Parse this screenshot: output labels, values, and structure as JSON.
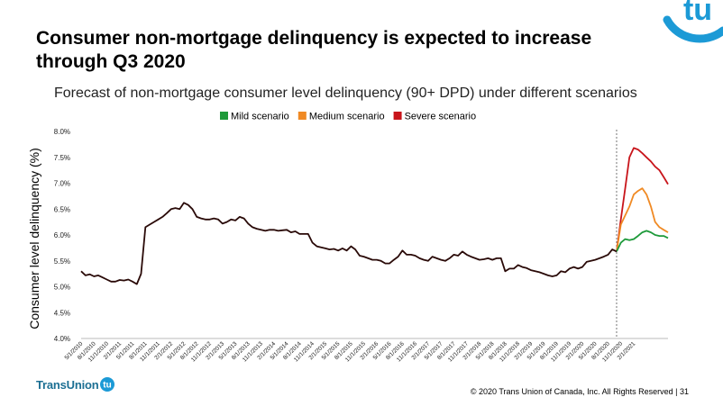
{
  "slide": {
    "title_line1": "Consumer non-mortgage delinquency is expected to increase",
    "title_line2": "through Q3 2020",
    "logo_text": "tu",
    "footer_logo_text": "TransUnion",
    "copyright": "© 2020 Trans Union of Canada, Inc. All Rights Reserved |  31"
  },
  "colors": {
    "historical": "#2a0a08",
    "mild": "#1e9a3a",
    "medium": "#f08a24",
    "severe": "#c8151b",
    "brand": "#1c9ad6",
    "brand_dark": "#1c6f93"
  },
  "chart_data": {
    "type": "line",
    "title": "Forecast of non-mortgage consumer level delinquency (90+ DPD) under different scenarios",
    "ylabel": "Consumer level delinquency (%)",
    "xlabel": "",
    "ylim": [
      4.0,
      8.0
    ],
    "yticks": [
      "4.0%",
      "4.5%",
      "5.0%",
      "5.5%",
      "6.0%",
      "6.5%",
      "7.0%",
      "7.5%",
      "8.0%"
    ],
    "xticks": [
      "5/1/2010",
      "8/1/2010",
      "11/1/2010",
      "2/1/2011",
      "5/1/2011",
      "8/1/2011",
      "11/1/2011",
      "2/1/2012",
      "5/1/2012",
      "8/1/2012",
      "11/1/2012",
      "2/1/2013",
      "5/1/2013",
      "8/1/2013",
      "11/1/2013",
      "2/1/2014",
      "5/1/2014",
      "8/1/2014",
      "11/1/2014",
      "2/1/2015",
      "5/1/2015",
      "8/1/2015",
      "11/1/2015",
      "2/1/2016",
      "5/1/2016",
      "8/1/2016",
      "11/1/2016",
      "2/1/2017",
      "5/1/2017",
      "8/1/2017",
      "11/1/2017",
      "2/1/2018",
      "5/1/2018",
      "8/1/2018",
      "11/1/2018",
      "2/1/2019",
      "5/1/2019",
      "8/1/2019",
      "11/1/2019",
      "2/1/2020",
      "5/1/2020",
      "8/1/2020",
      "11/1/2020",
      "2/1/2021"
    ],
    "forecast_start": "2/1/2020",
    "legend": [
      "Mild scenario",
      "Medium scenario",
      "Severe scenario"
    ],
    "legend_position": "top-right",
    "historical": [
      5.3,
      5.22,
      5.24,
      5.2,
      5.22,
      5.18,
      5.14,
      5.1,
      5.1,
      5.13,
      5.12,
      5.14,
      5.1,
      5.05,
      5.25,
      6.15,
      6.2,
      6.25,
      6.3,
      6.35,
      6.42,
      6.5,
      6.52,
      6.5,
      6.62,
      6.58,
      6.5,
      6.35,
      6.32,
      6.3,
      6.3,
      6.32,
      6.3,
      6.22,
      6.25,
      6.3,
      6.28,
      6.35,
      6.32,
      6.22,
      6.15,
      6.12,
      6.1,
      6.08,
      6.1,
      6.1,
      6.08,
      6.09,
      6.1,
      6.05,
      6.07,
      6.02,
      6.02,
      6.02,
      5.85,
      5.78,
      5.76,
      5.74,
      5.72,
      5.73,
      5.7,
      5.74,
      5.7,
      5.78,
      5.72,
      5.6,
      5.58,
      5.55,
      5.52,
      5.52,
      5.5,
      5.45,
      5.45,
      5.52,
      5.58,
      5.7,
      5.62,
      5.62,
      5.6,
      5.55,
      5.52,
      5.5,
      5.58,
      5.55,
      5.52,
      5.5,
      5.55,
      5.62,
      5.6,
      5.68,
      5.62,
      5.58,
      5.55,
      5.52,
      5.53,
      5.55,
      5.52,
      5.55,
      5.55,
      5.3,
      5.35,
      5.35,
      5.42,
      5.38,
      5.36,
      5.32,
      5.3,
      5.28,
      5.25,
      5.22,
      5.2,
      5.22,
      5.3,
      5.28,
      5.35,
      5.38,
      5.35,
      5.38,
      5.48,
      5.5,
      5.52,
      5.55,
      5.58,
      5.62,
      5.72,
      5.68
    ],
    "series": [
      {
        "name": "Mild scenario",
        "values": [
          5.68,
          5.85,
          5.92,
          5.9,
          5.92,
          5.98,
          6.05,
          6.08,
          6.05,
          6.0,
          5.98,
          5.98,
          5.94
        ]
      },
      {
        "name": "Medium scenario",
        "values": [
          5.68,
          6.2,
          6.38,
          6.55,
          6.78,
          6.85,
          6.9,
          6.78,
          6.55,
          6.25,
          6.15,
          6.1,
          6.05
        ]
      },
      {
        "name": "Severe scenario",
        "values": [
          5.68,
          6.3,
          6.9,
          7.5,
          7.68,
          7.65,
          7.58,
          7.5,
          7.42,
          7.32,
          7.25,
          7.12,
          6.98
        ]
      }
    ]
  }
}
